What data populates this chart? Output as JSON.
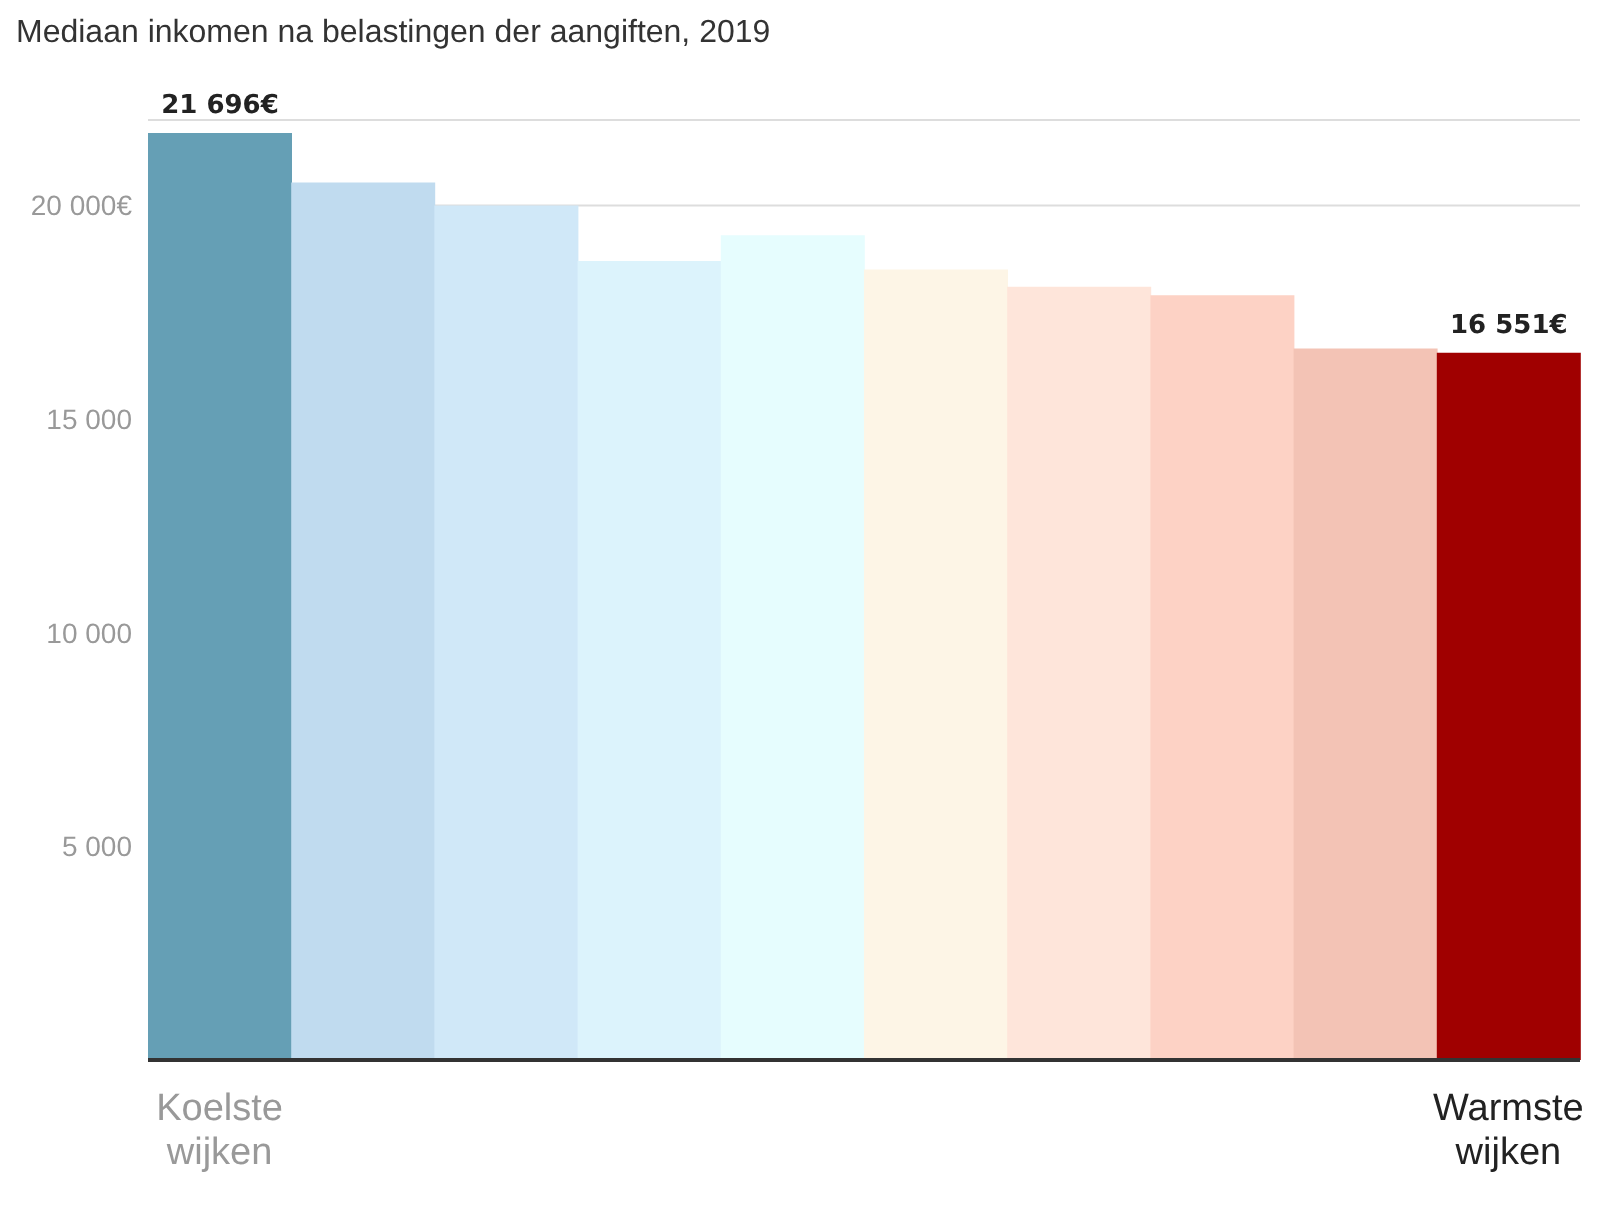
{
  "chart_data": {
    "type": "bar",
    "title": "Mediaan inkomen na belastingen der aangiften, 2019",
    "categories": [
      "Koelste wijken",
      null,
      null,
      null,
      null,
      null,
      null,
      null,
      null,
      "Warmste wijken"
    ],
    "values": [
      21696,
      20540,
      20000,
      18700,
      19300,
      18500,
      18100,
      17900,
      16650,
      16551
    ],
    "colors": [
      "#659fb5",
      "#c0dbef",
      "#d0e8f8",
      "#dcf3fc",
      "#e6fdfe",
      "#fdf5e6",
      "#fee5da",
      "#fdd2c5",
      "#f3c3b5",
      "#a00000"
    ],
    "value_labels": [
      "21 696€",
      null,
      null,
      null,
      null,
      null,
      null,
      null,
      null,
      "16 551€"
    ],
    "ylim": [
      0,
      22000
    ],
    "yticks": [
      {
        "value": 5000,
        "label": "5 000"
      },
      {
        "value": 10000,
        "label": "10 000"
      },
      {
        "value": 15000,
        "label": "15 000"
      },
      {
        "value": 20000,
        "label": "20 000€"
      }
    ],
    "grid": "y"
  }
}
